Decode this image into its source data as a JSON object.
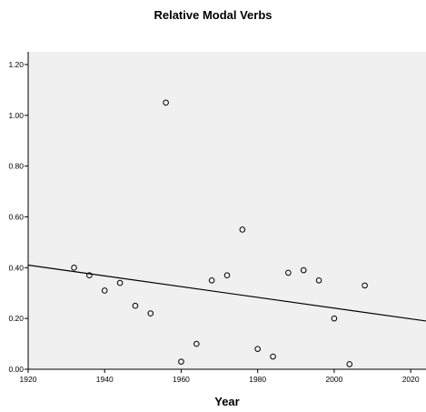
{
  "chart_data": {
    "type": "scatter",
    "title": "Relative Modal Verbs",
    "xlabel": "Year",
    "ylabel": "",
    "xlim": [
      1920,
      2024
    ],
    "ylim": [
      0,
      1.25
    ],
    "x_ticks": [
      1920,
      1940,
      1960,
      1980,
      2000,
      2020
    ],
    "x_tick_labels": [
      "1920",
      "1940",
      "1960",
      "1980",
      "2000",
      "2020"
    ],
    "y_ticks": [
      0,
      0.2,
      0.4,
      0.6,
      0.8,
      1.0,
      1.2
    ],
    "y_tick_labels": [
      "0.00",
      "0.20",
      "0.40",
      "0.60",
      "0.80",
      "1.00",
      "1.20"
    ],
    "grid": false,
    "background_color": "#f0f0f0",
    "point_color": "#000000",
    "line_color": "#000000",
    "points": [
      {
        "x": 1932,
        "y": 0.4
      },
      {
        "x": 1936,
        "y": 0.37
      },
      {
        "x": 1940,
        "y": 0.31
      },
      {
        "x": 1944,
        "y": 0.34
      },
      {
        "x": 1948,
        "y": 0.25
      },
      {
        "x": 1952,
        "y": 0.22
      },
      {
        "x": 1956,
        "y": 1.05
      },
      {
        "x": 1960,
        "y": 0.03
      },
      {
        "x": 1964,
        "y": 0.1
      },
      {
        "x": 1968,
        "y": 0.35
      },
      {
        "x": 1972,
        "y": 0.37
      },
      {
        "x": 1976,
        "y": 0.55
      },
      {
        "x": 1980,
        "y": 0.08
      },
      {
        "x": 1984,
        "y": 0.05
      },
      {
        "x": 1988,
        "y": 0.38
      },
      {
        "x": 1992,
        "y": 0.39
      },
      {
        "x": 1996,
        "y": 0.35
      },
      {
        "x": 2000,
        "y": 0.2
      },
      {
        "x": 2004,
        "y": 0.02
      },
      {
        "x": 2008,
        "y": 0.33
      }
    ],
    "fit_line": {
      "x": [
        1920,
        2024
      ],
      "y": [
        0.41,
        0.19
      ]
    }
  }
}
